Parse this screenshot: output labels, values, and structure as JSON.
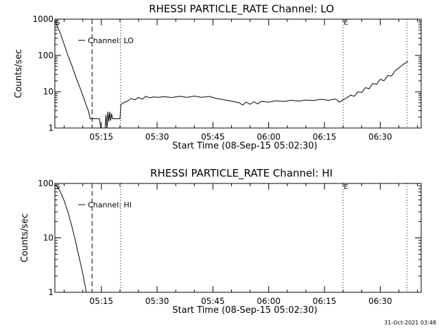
{
  "footer": "31-Oct-2021 03:48",
  "chart_data": [
    {
      "type": "line",
      "title": "RHESSI PARTICLE_RATE Channel: LO",
      "xlabel": "Start Time (08-Sep-15 05:02:30)",
      "ylabel": "Counts/sec",
      "y_scale": "log",
      "ylim": [
        1,
        1000
      ],
      "xlim": [
        "05:02:30",
        "06:41:00"
      ],
      "x_ticks": [
        "05:15",
        "05:30",
        "05:45",
        "06:00",
        "06:15",
        "06:30"
      ],
      "y_ticks": [
        {
          "value": 1,
          "label": "1"
        },
        {
          "value": 10,
          "label": "10"
        },
        {
          "value": 100,
          "label": "100"
        },
        {
          "value": 1000,
          "label": "1000"
        }
      ],
      "legend": {
        "entry": "Channel: LO",
        "placement": "top-left"
      },
      "markers": [
        {
          "time": "05:02:30",
          "label": "S",
          "style": "dotted"
        },
        {
          "time": "05:12:30",
          "label": "",
          "style": "dashed"
        },
        {
          "time": "05:20:10",
          "label": "",
          "style": "dotted"
        },
        {
          "time": "06:20:00",
          "label": "E",
          "style": "dotted"
        },
        {
          "time": "06:37:10",
          "label": "",
          "style": "dotted"
        }
      ],
      "series": [
        {
          "name": "Channel: LO",
          "points": [
            [
              "05:02:30",
              900
            ],
            [
              "05:03:00",
              700
            ],
            [
              "05:04:00",
              400
            ],
            [
              "05:05:00",
              200
            ],
            [
              "05:06:00",
              100
            ],
            [
              "05:07:00",
              55
            ],
            [
              "05:08:00",
              28
            ],
            [
              "05:09:00",
              15
            ],
            [
              "05:10:00",
              8
            ],
            [
              "05:11:00",
              4
            ],
            [
              "05:11:30",
              3
            ],
            [
              "05:12:00",
              1.8
            ],
            [
              "05:14:30",
              1.8
            ],
            [
              "05:15:30",
              0.3
            ],
            [
              "05:16:00",
              1.0
            ],
            [
              "05:16:15",
              2.3
            ],
            [
              "05:16:30",
              0.9
            ],
            [
              "05:16:45",
              2.8
            ],
            [
              "05:17:00",
              1.5
            ],
            [
              "05:17:15",
              2.8
            ],
            [
              "05:17:30",
              1.6
            ],
            [
              "05:17:45",
              2.5
            ],
            [
              "05:18:00",
              1.8
            ],
            [
              "05:20:00",
              1.8
            ],
            [
              "05:20:15",
              4.5
            ],
            [
              "05:21:00",
              5.0
            ],
            [
              "05:22:00",
              5.5
            ],
            [
              "05:23:00",
              6.5
            ],
            [
              "05:24:00",
              6.0
            ],
            [
              "05:25:00",
              7.0
            ],
            [
              "05:26:00",
              6.2
            ],
            [
              "05:27:00",
              7.5
            ],
            [
              "05:28:00",
              6.8
            ],
            [
              "05:29:00",
              7.2
            ],
            [
              "05:30:00",
              7.0
            ],
            [
              "05:32:00",
              7.3
            ],
            [
              "05:34:00",
              6.9
            ],
            [
              "05:36:00",
              7.5
            ],
            [
              "05:38:00",
              7.0
            ],
            [
              "05:40:00",
              7.6
            ],
            [
              "05:42:00",
              7.0
            ],
            [
              "05:44:00",
              7.4
            ],
            [
              "05:46:00",
              6.5
            ],
            [
              "05:48:00",
              6.0
            ],
            [
              "05:50:00",
              5.5
            ],
            [
              "05:52:00",
              5.0
            ],
            [
              "05:53:00",
              4.3
            ],
            [
              "05:54:00",
              5.2
            ],
            [
              "05:55:00",
              4.5
            ],
            [
              "05:56:00",
              5.3
            ],
            [
              "05:57:00",
              4.6
            ],
            [
              "05:58:00",
              5.4
            ],
            [
              "06:00:00",
              5.2
            ],
            [
              "06:02:00",
              5.6
            ],
            [
              "06:04:00",
              5.4
            ],
            [
              "06:06:00",
              5.8
            ],
            [
              "06:08:00",
              5.5
            ],
            [
              "06:10:00",
              5.9
            ],
            [
              "06:12:00",
              5.7
            ],
            [
              "06:14:00",
              6.2
            ],
            [
              "06:16:00",
              5.8
            ],
            [
              "06:18:00",
              6.3
            ],
            [
              "06:19:00",
              5.2
            ],
            [
              "06:20:00",
              6.0
            ],
            [
              "06:21:00",
              6.8
            ],
            [
              "06:22:00",
              8.0
            ],
            [
              "06:23:00",
              7.5
            ],
            [
              "06:24:00",
              10.0
            ],
            [
              "06:25:00",
              9.5
            ],
            [
              "06:26:00",
              13.0
            ],
            [
              "06:27:00",
              12.0
            ],
            [
              "06:28:00",
              17.0
            ],
            [
              "06:29:00",
              16.0
            ],
            [
              "06:30:00",
              22.0
            ],
            [
              "06:31:00",
              20.0
            ],
            [
              "06:32:00",
              28.0
            ],
            [
              "06:33:00",
              27.0
            ],
            [
              "06:34:00",
              38.0
            ],
            [
              "06:35:00",
              45.0
            ],
            [
              "06:36:00",
              55.0
            ],
            [
              "06:37:00",
              65.0
            ],
            [
              "06:37:30",
              68.0
            ]
          ]
        }
      ]
    },
    {
      "type": "line",
      "title": "RHESSI PARTICLE_RATE Channel: HI",
      "xlabel": "Start Time (08-Sep-15 05:02:30)",
      "ylabel": "Counts/sec",
      "y_scale": "log",
      "ylim": [
        1,
        100
      ],
      "xlim": [
        "05:02:30",
        "06:41:00"
      ],
      "x_ticks": [
        "05:15",
        "05:30",
        "05:45",
        "06:00",
        "06:15",
        "06:30"
      ],
      "y_ticks": [
        {
          "value": 1,
          "label": "1"
        },
        {
          "value": 10,
          "label": "10"
        },
        {
          "value": 100,
          "label": "100"
        }
      ],
      "legend": {
        "entry": "Channel: HI",
        "placement": "top-left"
      },
      "markers": [
        {
          "time": "05:02:30",
          "label": "S",
          "style": "dotted"
        },
        {
          "time": "05:12:30",
          "label": "",
          "style": "dashed"
        },
        {
          "time": "05:20:10",
          "label": "",
          "style": "dotted"
        },
        {
          "time": "06:20:00",
          "label": "E",
          "style": "dotted"
        },
        {
          "time": "06:37:10",
          "label": "",
          "style": "dotted"
        }
      ],
      "series": [
        {
          "name": "Channel: HI",
          "points": [
            [
              "05:02:30",
              95
            ],
            [
              "05:03:00",
              90
            ],
            [
              "05:04:00",
              70
            ],
            [
              "05:05:00",
              48
            ],
            [
              "05:06:00",
              30
            ],
            [
              "05:07:00",
              17
            ],
            [
              "05:08:00",
              9
            ],
            [
              "05:09:00",
              4.5
            ],
            [
              "05:10:00",
              2.2
            ],
            [
              "05:10:45",
              1.2
            ],
            [
              "05:11:00",
              0.9
            ]
          ]
        }
      ]
    }
  ]
}
